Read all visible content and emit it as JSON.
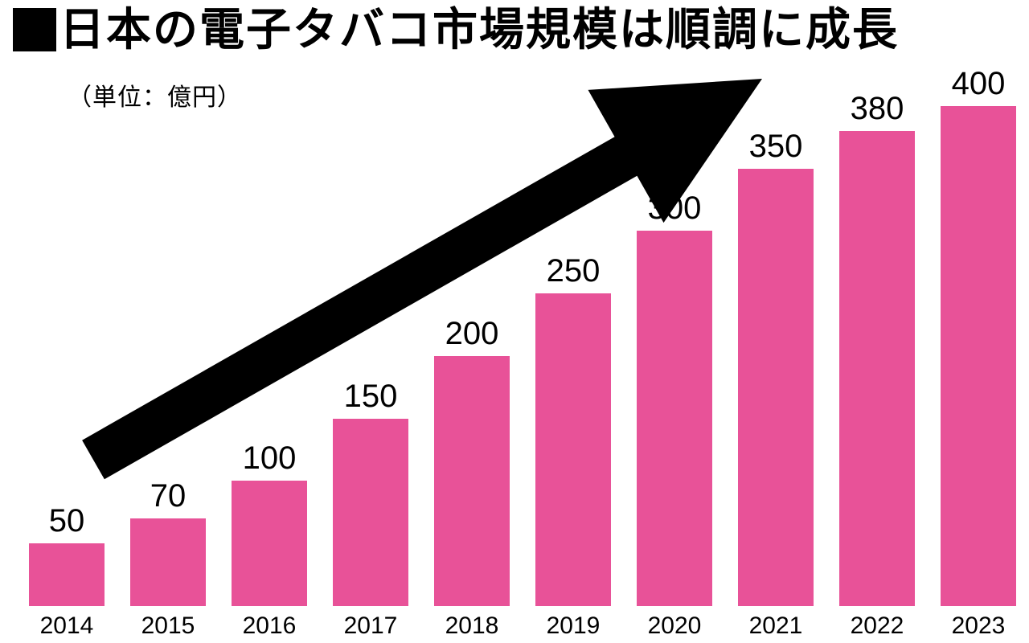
{
  "header": {
    "title": "日本の電子タバコ市場規模は順調に成長",
    "unit_label": "（単位：億円）"
  },
  "chart_data": {
    "type": "bar",
    "title": "日本の電子タバコ市場規模は順調に成長",
    "categories": [
      "2014",
      "2015",
      "2016",
      "2017",
      "2018",
      "2019",
      "2020",
      "2021",
      "2022",
      "2023"
    ],
    "values": [
      50,
      70,
      100,
      150,
      200,
      250,
      300,
      350,
      380,
      400
    ],
    "xlabel": "",
    "ylabel": "",
    "unit_note": "（単位：億円）",
    "ylim": [
      0,
      400
    ],
    "grid": false,
    "legend": "none",
    "value_labels_shown": true,
    "bar_color": "#e85298",
    "annotation": "growth-arrow"
  },
  "colors": {
    "bar": "#e85298",
    "arrow": "#000000",
    "text": "#000000",
    "background": "#ffffff"
  }
}
